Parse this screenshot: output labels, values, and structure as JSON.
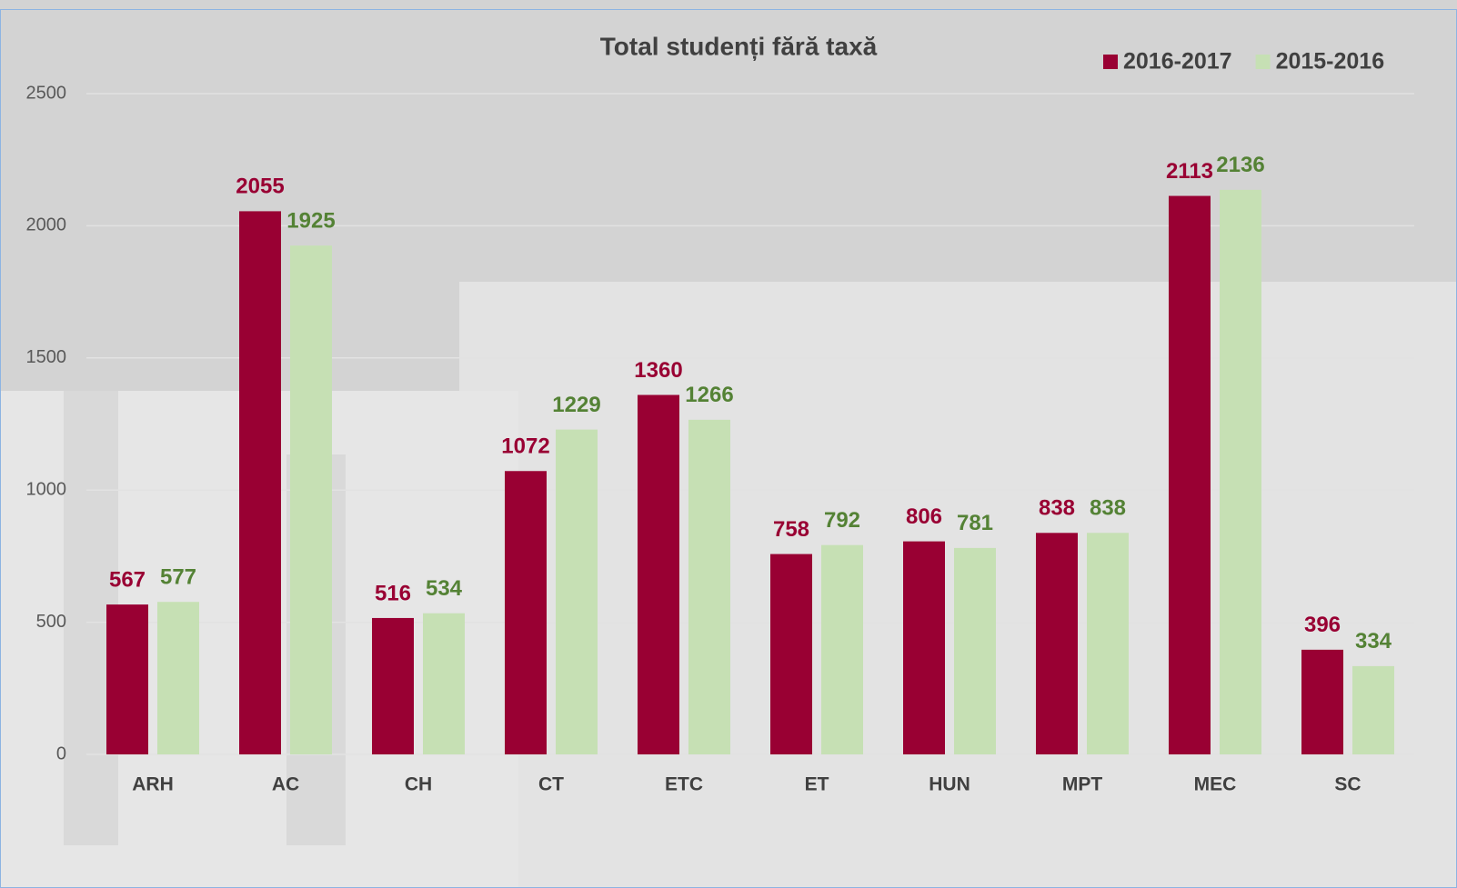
{
  "chart_data": {
    "type": "bar",
    "title": "Total studenți fără taxă",
    "categories": [
      "ARH",
      "AC",
      "CH",
      "CT",
      "ETC",
      "ET",
      "HUN",
      "MPT",
      "MEC",
      "SC"
    ],
    "series": [
      {
        "name": "2016-2017",
        "color": "#990033",
        "label_color": "#990033",
        "values": [
          567,
          2055,
          516,
          1072,
          1360,
          758,
          806,
          838,
          2113,
          396
        ]
      },
      {
        "name": "2015-2016",
        "color": "#c6e0b4",
        "label_color": "#548235",
        "values": [
          577,
          1925,
          534,
          1229,
          1266,
          792,
          781,
          838,
          2136,
          334
        ]
      }
    ],
    "ylim": [
      0,
      2500
    ],
    "yticks": [
      0,
      500,
      1000,
      1500,
      2000,
      2500
    ],
    "grid": true,
    "legend": "top-right"
  }
}
